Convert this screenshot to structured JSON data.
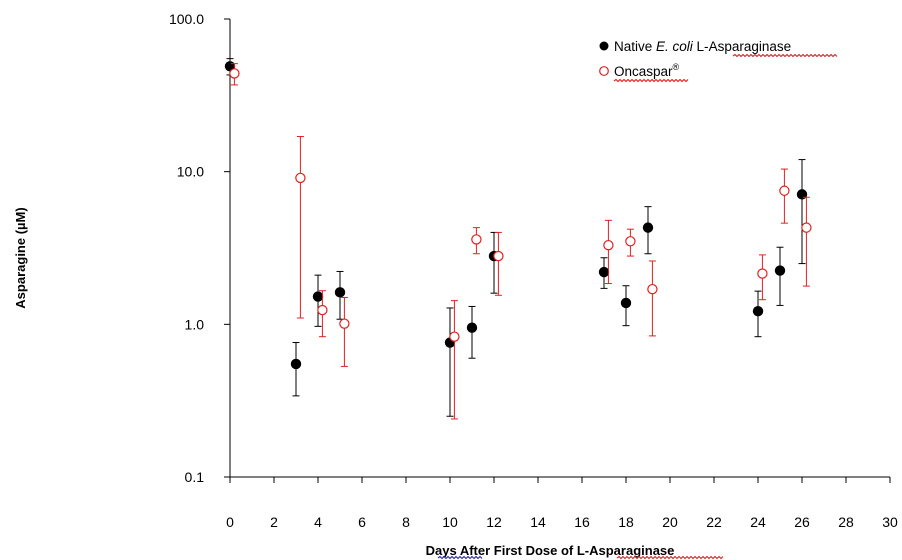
{
  "chart_data": {
    "type": "scatter",
    "xlabel_parts": [
      "Days ",
      "After",
      " First Dose of L-",
      "Asparaginase"
    ],
    "ylabel": "Asparagine (µM)",
    "xlim": [
      0,
      30
    ],
    "ylim": [
      0.1,
      100
    ],
    "yscale": "log",
    "xticks": [
      0,
      2,
      4,
      6,
      8,
      10,
      12,
      14,
      16,
      18,
      20,
      22,
      24,
      26,
      28,
      30
    ],
    "xtick_labels": [
      "0",
      "2",
      "4",
      "6",
      "8",
      "10",
      "12",
      "14",
      "16",
      "18",
      "20",
      "22",
      "24",
      "26",
      "28",
      "30"
    ],
    "yticks": [
      0.1,
      1,
      10,
      100
    ],
    "ytick_labels": [
      "0.1",
      "1.0",
      "10.0",
      "100.0"
    ],
    "grid": false,
    "legend_position": "top-right",
    "series": [
      {
        "legend_parts": [
          "Native ",
          "E. coli",
          " L-",
          "Asparaginase"
        ],
        "color": "#000000",
        "marker": "filled-circle",
        "points": [
          {
            "x": 0,
            "y": 49,
            "lo": 43,
            "hi": 55
          },
          {
            "x": 3,
            "y": 0.55,
            "lo": 0.34,
            "hi": 0.76
          },
          {
            "x": 4,
            "y": 1.52,
            "lo": 0.97,
            "hi": 2.1
          },
          {
            "x": 5,
            "y": 1.62,
            "lo": 1.08,
            "hi": 2.22
          },
          {
            "x": 10,
            "y": 0.76,
            "lo": 0.25,
            "hi": 1.28
          },
          {
            "x": 11,
            "y": 0.95,
            "lo": 0.6,
            "hi": 1.31
          },
          {
            "x": 12,
            "y": 2.8,
            "lo": 1.6,
            "hi": 4.0
          },
          {
            "x": 17,
            "y": 2.2,
            "lo": 1.72,
            "hi": 2.73
          },
          {
            "x": 18,
            "y": 1.38,
            "lo": 0.98,
            "hi": 1.79
          },
          {
            "x": 19,
            "y": 4.3,
            "lo": 2.9,
            "hi": 5.9
          },
          {
            "x": 24,
            "y": 1.22,
            "lo": 0.83,
            "hi": 1.65
          },
          {
            "x": 25,
            "y": 2.25,
            "lo": 1.33,
            "hi": 3.2
          },
          {
            "x": 26,
            "y": 7.1,
            "lo": 2.5,
            "hi": 12
          }
        ]
      },
      {
        "legend_parts": [
          "",
          "Oncaspar",
          "®",
          ""
        ],
        "color": "#e02020",
        "marker": "open-circle",
        "points": [
          {
            "x": 0.2,
            "y": 44,
            "lo": 37,
            "hi": 51
          },
          {
            "x": 3.2,
            "y": 9.1,
            "lo": 1.1,
            "hi": 17
          },
          {
            "x": 4.2,
            "y": 1.24,
            "lo": 0.83,
            "hi": 1.66
          },
          {
            "x": 5.2,
            "y": 1.01,
            "lo": 0.53,
            "hi": 1.5
          },
          {
            "x": 10.2,
            "y": 0.83,
            "lo": 0.24,
            "hi": 1.43
          },
          {
            "x": 11.2,
            "y": 3.6,
            "lo": 2.9,
            "hi": 4.3
          },
          {
            "x": 12.2,
            "y": 2.8,
            "lo": 1.55,
            "hi": 4.0
          },
          {
            "x": 17.2,
            "y": 3.3,
            "lo": 1.85,
            "hi": 4.8
          },
          {
            "x": 18.2,
            "y": 3.5,
            "lo": 2.8,
            "hi": 4.2
          },
          {
            "x": 19.2,
            "y": 1.7,
            "lo": 0.84,
            "hi": 2.6
          },
          {
            "x": 24.2,
            "y": 2.15,
            "lo": 1.45,
            "hi": 2.85
          },
          {
            "x": 25.2,
            "y": 7.5,
            "lo": 4.6,
            "hi": 10.4
          },
          {
            "x": 26.2,
            "y": 4.3,
            "lo": 1.78,
            "hi": 6.8
          }
        ]
      }
    ]
  }
}
